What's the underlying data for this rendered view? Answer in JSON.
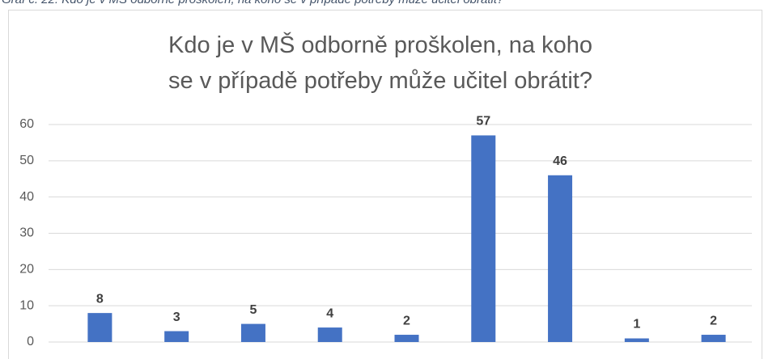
{
  "caption": "Graf č. 22: Kdo je v MŠ odborně proškolen, na koho se v případě potřeby může učitel obrátit?",
  "chart_data": {
    "type": "bar",
    "title": "Kdo je v MŠ odborně proškolen, na koho se v případě potřeby může učitel obrátit?",
    "categories": [
      null,
      null,
      null,
      null,
      null,
      null,
      null,
      null,
      null
    ],
    "values": [
      8,
      3,
      5,
      4,
      2,
      57,
      46,
      1,
      2
    ],
    "color": "#4472c4",
    "ylim": [
      0,
      60
    ],
    "yticks": [
      0,
      10,
      20,
      30,
      40,
      50,
      60
    ],
    "grid": true
  }
}
